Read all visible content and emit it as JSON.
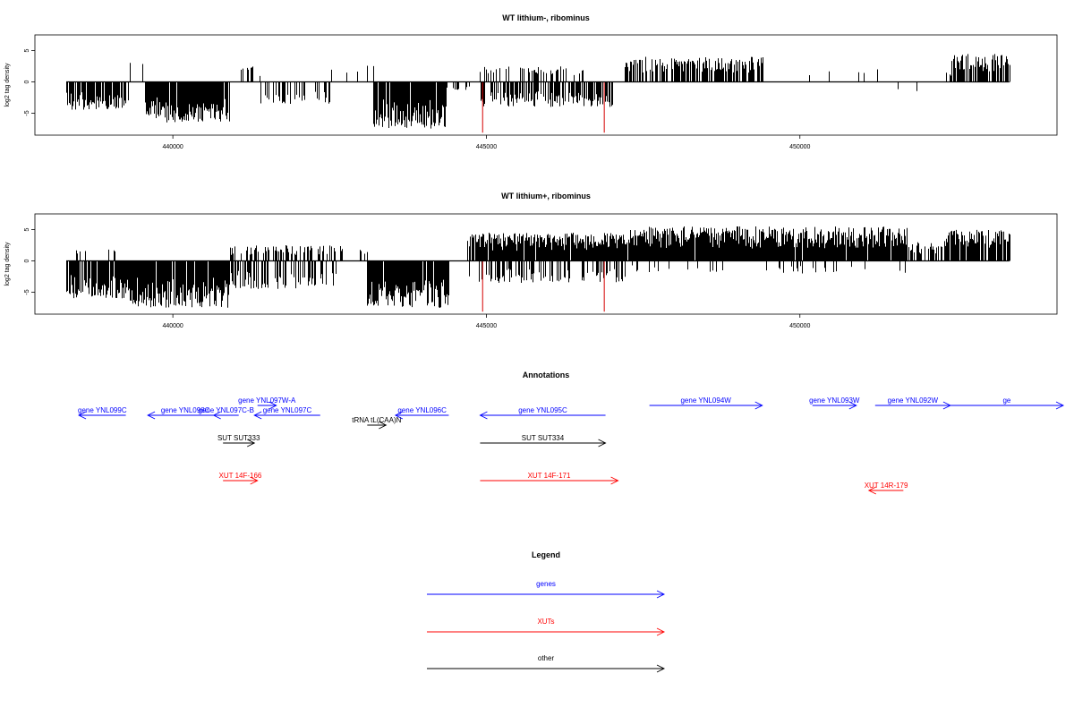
{
  "chart_data": [
    {
      "type": "bar",
      "title": "WT lithium-, ribominus",
      "xlabel": "",
      "ylabel": "log2 tag density",
      "xlim": [
        437800,
        454100
      ],
      "ylim": [
        -8.5,
        7.5
      ],
      "x_ticks": [
        440000,
        445000,
        450000
      ],
      "x_tick_labels": [
        "440000",
        "445000",
        "450000"
      ],
      "y_ticks": [
        -5,
        0,
        5
      ],
      "y_tick_labels": [
        "-5",
        "0",
        "5"
      ],
      "data_range": [
        438300,
        453340
      ],
      "red_marks": [
        {
          "x": 444940,
          "y": -8.1
        },
        {
          "x": 446880,
          "y": -8.1
        }
      ],
      "density_profile": [
        {
          "from": 438300,
          "to": 439300,
          "sign": -1,
          "amp": 4.5,
          "p": 0.85
        },
        {
          "from": 439300,
          "to": 439550,
          "sign": 1,
          "amp": 3.5,
          "p": 0.2
        },
        {
          "from": 439550,
          "to": 440900,
          "sign": -1,
          "amp": 6.5,
          "p": 0.92
        },
        {
          "from": 440900,
          "to": 441400,
          "sign": 1,
          "amp": 2.5,
          "p": 0.2
        },
        {
          "from": 441400,
          "to": 442500,
          "sign": -1,
          "amp": 3.5,
          "p": 0.35
        },
        {
          "from": 442500,
          "to": 443200,
          "sign": 1,
          "amp": 3.0,
          "p": 0.08
        },
        {
          "from": 443200,
          "to": 444350,
          "sign": -1,
          "amp": 7.5,
          "p": 0.95
        },
        {
          "from": 444350,
          "to": 444900,
          "sign": -1,
          "amp": 1.5,
          "p": 0.2
        },
        {
          "from": 444900,
          "to": 446600,
          "sign": 1,
          "amp": 2.5,
          "p": 0.3
        },
        {
          "from": 444900,
          "to": 447000,
          "sign": -1,
          "amp": 4.0,
          "p": 0.55
        },
        {
          "from": 447200,
          "to": 449400,
          "sign": 1,
          "amp": 4.0,
          "p": 0.7
        },
        {
          "from": 449400,
          "to": 452000,
          "sign": 1,
          "amp": 2.0,
          "p": 0.05
        },
        {
          "from": 451200,
          "to": 451900,
          "sign": -1,
          "amp": 3.0,
          "p": 0.08
        },
        {
          "from": 452000,
          "to": 452400,
          "sign": 1,
          "amp": 1.5,
          "p": 0.05
        },
        {
          "from": 452400,
          "to": 453340,
          "sign": 1,
          "amp": 4.5,
          "p": 0.65
        }
      ]
    },
    {
      "type": "bar",
      "title": "WT lithium+, ribominus",
      "xlabel": "",
      "ylabel": "log2 tag density",
      "xlim": [
        437800,
        454100
      ],
      "ylim": [
        -8.5,
        7.5
      ],
      "x_ticks": [
        440000,
        445000,
        450000
      ],
      "x_tick_labels": [
        "440000",
        "445000",
        "450000"
      ],
      "y_ticks": [
        -5,
        0,
        5
      ],
      "y_tick_labels": [
        "-5",
        "0",
        "5"
      ],
      "data_range": [
        438300,
        453340
      ],
      "red_marks": [
        {
          "x": 444940,
          "y": -8.1
        },
        {
          "x": 446880,
          "y": -8.1
        }
      ],
      "density_profile": [
        {
          "from": 438300,
          "to": 439300,
          "sign": -1,
          "amp": 6.0,
          "p": 0.9
        },
        {
          "from": 438300,
          "to": 439300,
          "sign": 1,
          "amp": 1.8,
          "p": 0.15
        },
        {
          "from": 439300,
          "to": 440900,
          "sign": -1,
          "amp": 7.5,
          "p": 0.95
        },
        {
          "from": 440900,
          "to": 442600,
          "sign": 1,
          "amp": 2.5,
          "p": 0.5
        },
        {
          "from": 440900,
          "to": 442600,
          "sign": -1,
          "amp": 4.5,
          "p": 0.45
        },
        {
          "from": 442600,
          "to": 443100,
          "sign": 1,
          "amp": 2.5,
          "p": 0.2
        },
        {
          "from": 443100,
          "to": 444400,
          "sign": -1,
          "amp": 7.5,
          "p": 0.95
        },
        {
          "from": 444700,
          "to": 447200,
          "sign": 1,
          "amp": 4.5,
          "p": 0.95
        },
        {
          "from": 444700,
          "to": 447200,
          "sign": -1,
          "amp": 3.5,
          "p": 0.4
        },
        {
          "from": 447200,
          "to": 451700,
          "sign": 1,
          "amp": 5.5,
          "p": 0.95
        },
        {
          "from": 447200,
          "to": 451700,
          "sign": -1,
          "amp": 2.0,
          "p": 0.1
        },
        {
          "from": 451700,
          "to": 452300,
          "sign": 1,
          "amp": 3.0,
          "p": 0.5
        },
        {
          "from": 452300,
          "to": 453340,
          "sign": 1,
          "amp": 5.0,
          "p": 0.9
        }
      ]
    },
    {
      "type": "annotation_track",
      "title": "Annotations",
      "xlim": [
        437800,
        454100
      ],
      "features": [
        {
          "label": "gene YNL099C",
          "category": "genes",
          "start": 438500,
          "end": 439250,
          "strand": "-",
          "row": 2
        },
        {
          "label": "gene YNL098C",
          "category": "genes",
          "start": 439600,
          "end": 440800,
          "strand": "-",
          "row": 2
        },
        {
          "label": "gene YNL097C-B",
          "category": "genes",
          "start": 440650,
          "end": 441050,
          "strand": "-",
          "row": 2
        },
        {
          "label": "gene YNL097W-A",
          "category": "genes",
          "start": 441350,
          "end": 441650,
          "strand": "+",
          "row": 1
        },
        {
          "label": "gene YNL097C",
          "category": "genes",
          "start": 441300,
          "end": 442350,
          "strand": "-",
          "row": 2
        },
        {
          "label": "tRNA tL(CAA)N",
          "category": "other",
          "start": 443100,
          "end": 443400,
          "strand": "+",
          "row": 3
        },
        {
          "label": "gene YNL096C",
          "category": "genes",
          "start": 443550,
          "end": 444400,
          "strand": "-",
          "row": 2
        },
        {
          "label": "gene YNL095C",
          "category": "genes",
          "start": 444900,
          "end": 446900,
          "strand": "-",
          "row": 2
        },
        {
          "label": "gene YNL094W",
          "category": "genes",
          "start": 447600,
          "end": 449400,
          "strand": "+",
          "row": 1
        },
        {
          "label": "gene YNL093W",
          "category": "genes",
          "start": 450200,
          "end": 450900,
          "strand": "+",
          "row": 1
        },
        {
          "label": "gene YNL092W",
          "category": "genes",
          "start": 451200,
          "end": 452400,
          "strand": "+",
          "row": 1
        },
        {
          "label": "ge",
          "category": "genes",
          "start": 452400,
          "end": 454200,
          "strand": "+",
          "row": 1
        },
        {
          "label": "SUT SUT333",
          "category": "other",
          "start": 440800,
          "end": 441300,
          "strand": "+",
          "row": 4
        },
        {
          "label": "SUT SUT334",
          "category": "other",
          "start": 444900,
          "end": 446900,
          "strand": "+",
          "row": 4
        },
        {
          "label": "XUT 14F-166",
          "category": "XUTs",
          "start": 440800,
          "end": 441350,
          "strand": "+",
          "row": 5
        },
        {
          "label": "XUT 14F-171",
          "category": "XUTs",
          "start": 444900,
          "end": 447100,
          "strand": "+",
          "row": 5
        },
        {
          "label": "XUT 14R-179",
          "category": "XUTs",
          "start": 451100,
          "end": 451650,
          "strand": "-",
          "row": 6
        }
      ]
    },
    {
      "type": "legend",
      "title": "Legend",
      "entries": [
        {
          "label": "genes",
          "color": "#0000ff"
        },
        {
          "label": "XUTs",
          "color": "#ff0000"
        },
        {
          "label": "other",
          "color": "#000000"
        }
      ]
    }
  ],
  "colors": {
    "genes": "#0000ff",
    "XUTs": "#ff0000",
    "other": "#000000",
    "bars": "#000000",
    "red_marks": "#d40000"
  }
}
